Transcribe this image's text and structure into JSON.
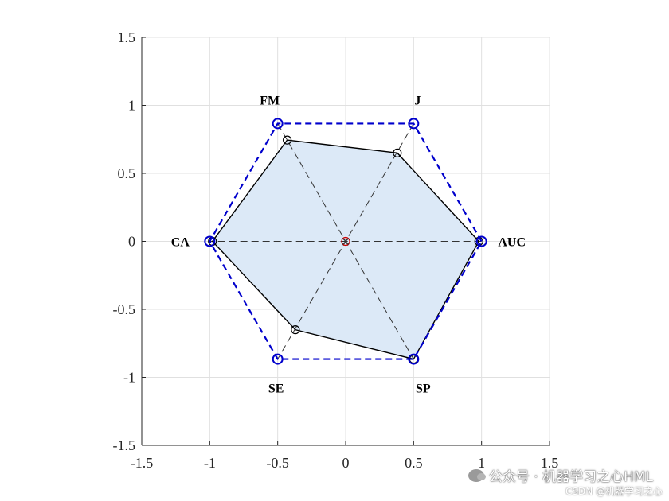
{
  "chart_data": {
    "type": "radar",
    "xlim": [
      -1.5,
      1.5
    ],
    "ylim": [
      -1.5,
      1.5
    ],
    "xticks": [
      "-1.5",
      "-1",
      "-0.5",
      "0",
      "0.5",
      "1",
      "1.5"
    ],
    "yticks": [
      "1.5",
      "1",
      "0.5",
      "0",
      "-0.5",
      "-1",
      "-1.5"
    ],
    "grid": true,
    "axes": [
      "AUC",
      "J",
      "FM",
      "CA",
      "SE",
      "SP"
    ],
    "reference_polygon": [
      {
        "x": 1,
        "y": 0
      },
      {
        "x": 0.5,
        "y": 0.866
      },
      {
        "x": -0.5,
        "y": 0.866
      },
      {
        "x": -1,
        "y": 0
      },
      {
        "x": -0.5,
        "y": -0.866
      },
      {
        "x": 0.5,
        "y": -0.866
      }
    ],
    "data_polygon": [
      {
        "x": 0.98,
        "y": 0
      },
      {
        "x": 0.38,
        "y": 0.65
      },
      {
        "x": -0.43,
        "y": 0.745
      },
      {
        "x": -0.98,
        "y": 0
      },
      {
        "x": -0.37,
        "y": -0.65
      },
      {
        "x": 0.5,
        "y": -0.866
      }
    ],
    "colors": {
      "reference": "#0000cc",
      "fill": "#dce9f7",
      "outline": "#000000",
      "spokes": "#333333",
      "center_marker": "#cc0000",
      "grid": "#e0e0e0"
    }
  },
  "watermark": {
    "main": "公众号 · 机器学习之心HML",
    "sub": "CSDN @机器学习之心"
  }
}
